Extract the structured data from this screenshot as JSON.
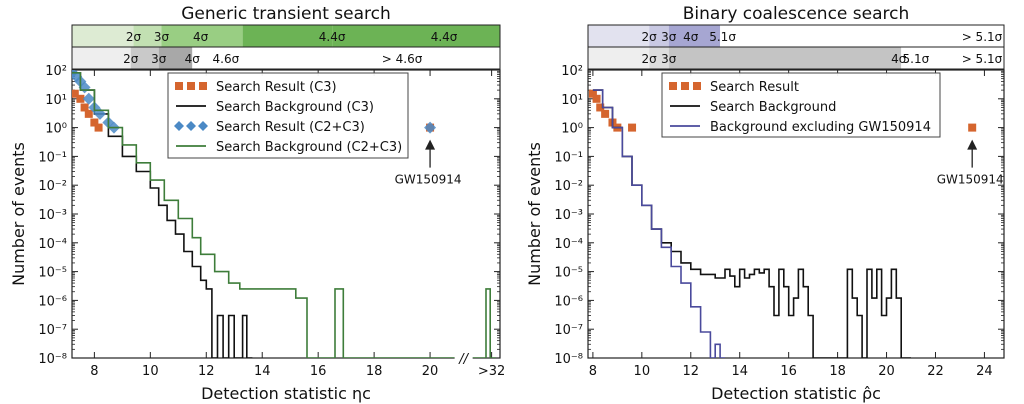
{
  "chart_data": [
    {
      "type": "line",
      "title": "Generic transient search",
      "xlabel": "Detection statistic ηc",
      "ylabel": "Number of events",
      "y_scale": "log",
      "xlim": [
        7.2,
        22.5
      ],
      "ylim": [
        1e-08,
        100
      ],
      "x_ticks": [
        {
          "value": 8,
          "label": "8"
        },
        {
          "value": 10,
          "label": "10"
        },
        {
          "value": 12,
          "label": "12"
        },
        {
          "value": 14,
          "label": "14"
        },
        {
          "value": 16,
          "label": "16"
        },
        {
          "value": 18,
          "label": "18"
        },
        {
          "value": 20,
          "label": "20"
        },
        {
          "value": 22.2,
          "label": ">32"
        }
      ],
      "axis_break_label": "//",
      "y_ticks": [
        {
          "value": 100,
          "label": "10²"
        },
        {
          "value": 10,
          "label": "10¹"
        },
        {
          "value": 1,
          "label": "10⁰"
        },
        {
          "value": 0.1,
          "label": "10⁻¹"
        },
        {
          "value": 0.01,
          "label": "10⁻²"
        },
        {
          "value": 0.001,
          "label": "10⁻³"
        },
        {
          "value": 0.0001,
          "label": "10⁻⁴"
        },
        {
          "value": 1e-05,
          "label": "10⁻⁵"
        },
        {
          "value": 1e-06,
          "label": "10⁻⁶"
        },
        {
          "value": 1e-07,
          "label": "10⁻⁷"
        },
        {
          "value": 1e-08,
          "label": "10⁻⁸"
        }
      ],
      "significance_bands": [
        {
          "colors": [
            "#ddebd3",
            "#c2e0b2",
            "#99ce83",
            "#6cb355"
          ],
          "edges": [
            7.2,
            9.4,
            10.4,
            13.3,
            16.5,
            22.5
          ],
          "labels": [
            {
              "x": 9.4,
              "text": "2σ"
            },
            {
              "x": 10.4,
              "text": "3σ"
            },
            {
              "x": 11.8,
              "text": "4σ"
            },
            {
              "x": 16.5,
              "text": "4.4σ"
            },
            {
              "x": 20.5,
              "text": "4.4σ"
            }
          ]
        },
        {
          "colors": [
            "#eeeeee",
            "#c9c9c9",
            "#a8a8a8",
            "#ffffff"
          ],
          "edges": [
            7.2,
            9.3,
            10.3,
            11.5,
            13.0,
            22.5
          ],
          "labels": [
            {
              "x": 9.3,
              "text": "2σ"
            },
            {
              "x": 10.3,
              "text": "3σ"
            },
            {
              "x": 11.5,
              "text": "4σ"
            },
            {
              "x": 12.7,
              "text": "4.6σ"
            },
            {
              "x": 19.0,
              "text": "> 4.6σ"
            }
          ]
        }
      ],
      "series": [
        {
          "name": "Search Result (C3)",
          "kind": "squares",
          "color": "#d5652e",
          "x": [
            7.3,
            7.5,
            7.65,
            7.8,
            8.0,
            8.15,
            20.0
          ],
          "y": [
            15,
            10,
            5,
            3,
            1.5,
            1,
            1
          ]
        },
        {
          "name": "Search Background (C3)",
          "kind": "step",
          "color": "#111111",
          "x": [
            7.2,
            7.5,
            8.0,
            8.5,
            9.0,
            9.5,
            10.0,
            10.3,
            10.6,
            10.9,
            11.2,
            11.5,
            11.8,
            12.0,
            12.2,
            12.4,
            12.6,
            12.8,
            13.0,
            13.3,
            13.45
          ],
          "y": [
            80,
            20,
            3,
            0.5,
            0.1,
            0.03,
            0.008,
            0.002,
            0.0006,
            0.0002,
            5e-05,
            1.5e-05,
            5e-06,
            2.5e-06,
            1e-08,
            3e-07,
            1e-08,
            3e-07,
            1e-08,
            3e-07,
            1e-08
          ]
        },
        {
          "name": "Search Result (C2+C3)",
          "kind": "diamonds",
          "color": "#4b89c5",
          "x": [
            7.2,
            7.35,
            7.5,
            7.65,
            7.8,
            8.0,
            8.2,
            8.5,
            8.7,
            20.0
          ],
          "y": [
            80,
            60,
            40,
            25,
            10,
            5,
            3,
            1.5,
            1,
            1
          ]
        },
        {
          "name": "Search Background (C2+C3)",
          "kind": "step",
          "color": "#3e7d3a",
          "x": [
            7.2,
            7.5,
            8.0,
            8.5,
            9.0,
            9.5,
            10.0,
            10.5,
            11.0,
            11.5,
            11.8,
            12.3,
            12.8,
            13.2,
            15.2,
            15.6,
            16.6,
            16.9,
            22.0,
            22.15
          ],
          "y": [
            80,
            20,
            4,
            1,
            0.25,
            0.06,
            0.015,
            0.003,
            0.0007,
            0.00015,
            4e-05,
            1e-05,
            4e-06,
            2.5e-06,
            1.2e-06,
            1e-08,
            2.5e-06,
            1e-08,
            2.5e-06,
            1e-08
          ]
        }
      ],
      "annotation": {
        "text": "GW150914",
        "x": 20.0,
        "y": 1
      },
      "legend": "upper center"
    },
    {
      "type": "line",
      "title": "Binary coalescence search",
      "xlabel": "Detection statistic ρ̂c",
      "ylabel": "Number of events",
      "y_scale": "log",
      "xlim": [
        7.8,
        24.8
      ],
      "ylim": [
        1e-08,
        100
      ],
      "x_ticks": [
        {
          "value": 8,
          "label": "8"
        },
        {
          "value": 10,
          "label": "10"
        },
        {
          "value": 12,
          "label": "12"
        },
        {
          "value": 14,
          "label": "14"
        },
        {
          "value": 16,
          "label": "16"
        },
        {
          "value": 18,
          "label": "18"
        },
        {
          "value": 20,
          "label": "20"
        },
        {
          "value": 22,
          "label": "22"
        },
        {
          "value": 24,
          "label": "24"
        }
      ],
      "y_ticks": [
        {
          "value": 100,
          "label": "10²"
        },
        {
          "value": 10,
          "label": "10¹"
        },
        {
          "value": 1,
          "label": "10⁰"
        },
        {
          "value": 0.1,
          "label": "10⁻¹"
        },
        {
          "value": 0.01,
          "label": "10⁻²"
        },
        {
          "value": 0.001,
          "label": "10⁻³"
        },
        {
          "value": 0.0001,
          "label": "10⁻⁴"
        },
        {
          "value": 1e-05,
          "label": "10⁻⁵"
        },
        {
          "value": 1e-06,
          "label": "10⁻⁶"
        },
        {
          "value": 1e-07,
          "label": "10⁻⁷"
        },
        {
          "value": 1e-08,
          "label": "10⁻⁸"
        }
      ],
      "significance_bands": [
        {
          "colors": [
            "#e2e2ef",
            "#c9c9e3",
            "#a6a6d2",
            "#ffffff"
          ],
          "edges": [
            7.8,
            10.3,
            11.1,
            13.2,
            13.3,
            24.8
          ],
          "labels": [
            {
              "x": 10.3,
              "text": "2σ"
            },
            {
              "x": 11.1,
              "text": "3σ"
            },
            {
              "x": 12.0,
              "text": "4σ"
            },
            {
              "x": 13.3,
              "text": "5.1σ"
            },
            {
              "x": 23.9,
              "text": "> 5.1σ"
            }
          ]
        },
        {
          "colors": [
            "#eeeeee",
            "#dddddd",
            "#c4c4c4",
            "#ffffff"
          ],
          "edges": [
            7.8,
            10.3,
            11.1,
            20.6,
            21.2,
            24.8
          ],
          "labels": [
            {
              "x": 10.3,
              "text": "2σ"
            },
            {
              "x": 11.1,
              "text": "3σ"
            },
            {
              "x": 20.5,
              "text": "4σ"
            },
            {
              "x": 21.2,
              "text": "5.1σ"
            },
            {
              "x": 23.9,
              "text": "> 5.1σ"
            }
          ]
        }
      ],
      "series": [
        {
          "name": "Search Result",
          "kind": "squares",
          "color": "#d5652e",
          "x": [
            8.0,
            8.15,
            8.3,
            8.5,
            8.8,
            9.0,
            9.6,
            23.5
          ],
          "y": [
            15,
            10,
            5,
            3,
            1.5,
            1,
            1,
            1
          ]
        },
        {
          "name": "Search Background",
          "kind": "step",
          "color": "#111111",
          "x": [
            8.0,
            8.4,
            8.8,
            9.2,
            9.6,
            10.0,
            10.4,
            10.8,
            11.2,
            11.6,
            12.0,
            12.4,
            13.0,
            13.4,
            13.6,
            13.8,
            14.0,
            14.2,
            14.4,
            14.6,
            14.8,
            15.0,
            15.2,
            15.4,
            15.6,
            15.8,
            16.0,
            16.2,
            16.4,
            16.6,
            16.8,
            17.0,
            17.2,
            18.4,
            18.6,
            18.8,
            19.0,
            19.2,
            19.4,
            19.6,
            19.8,
            20.0,
            20.2,
            20.4,
            20.6,
            20.8
          ],
          "y": [
            20,
            5,
            1,
            0.1,
            0.01,
            0.002,
            0.0003,
            0.0001,
            5e-05,
            2e-05,
            1.2e-05,
            8e-06,
            6e-06,
            1.2e-05,
            7e-06,
            3e-06,
            1.2e-05,
            6e-06,
            8e-06,
            1.2e-05,
            9e-06,
            1.2e-05,
            3e-06,
            3e-07,
            1.2e-05,
            3e-06,
            3e-07,
            1.2e-06,
            1.2e-05,
            3e-06,
            3e-07,
            1e-08,
            1e-08,
            1.2e-05,
            1.2e-06,
            3e-07,
            1e-08,
            1.2e-05,
            1.2e-06,
            1.2e-05,
            3e-07,
            1.2e-06,
            1.2e-05,
            1.2e-06,
            1e-08,
            1e-08
          ]
        },
        {
          "name": "Background excluding GW150914",
          "kind": "step",
          "color": "#4a4a9c",
          "x": [
            8.0,
            8.4,
            8.8,
            9.2,
            9.6,
            10.0,
            10.4,
            10.8,
            11.2,
            11.6,
            12.0,
            12.4,
            12.8,
            13.0,
            13.2
          ],
          "y": [
            20,
            5,
            1,
            0.1,
            0.01,
            0.002,
            0.0003,
            7e-05,
            1.5e-05,
            4e-06,
            6e-07,
            8e-08,
            1e-08,
            3e-08,
            1e-08
          ]
        }
      ],
      "annotation": {
        "text": "GW150914",
        "x": 23.5,
        "y": 1
      },
      "legend": "upper center"
    }
  ]
}
